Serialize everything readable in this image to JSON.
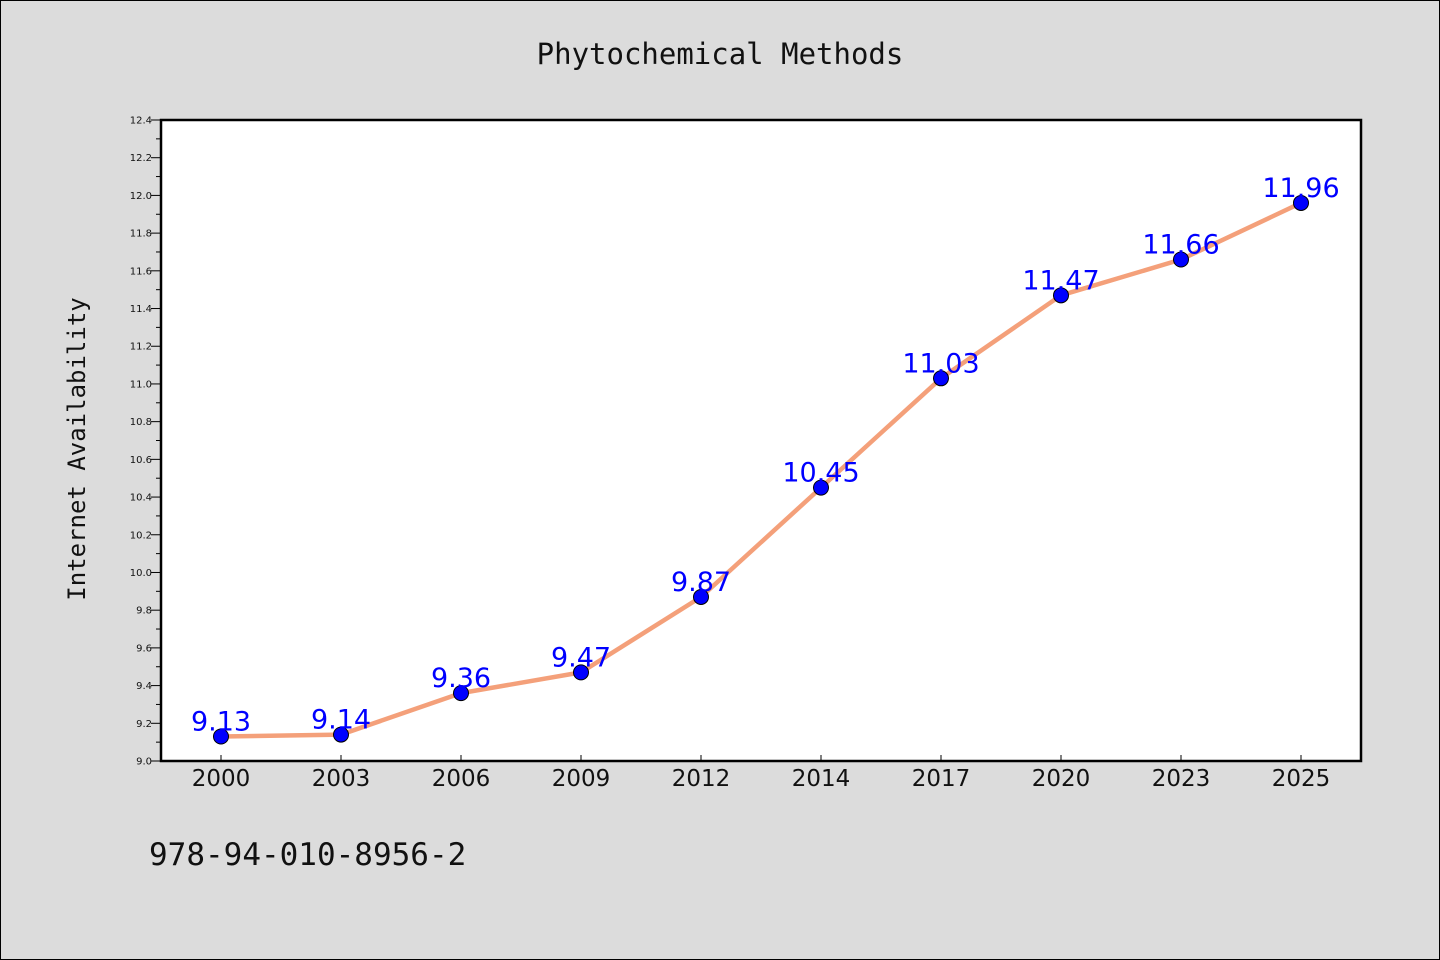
{
  "chart_data": {
    "type": "line",
    "title": "Phytochemical Methods",
    "xlabel": "",
    "ylabel": "Internet Availability",
    "categories": [
      "2000",
      "2003",
      "2006",
      "2009",
      "2012",
      "2014",
      "2017",
      "2020",
      "2023",
      "2025"
    ],
    "series": [
      {
        "values": [
          9.13,
          9.14,
          9.36,
          9.47,
          9.87,
          10.45,
          11.03,
          11.47,
          11.66,
          11.96
        ],
        "labels": [
          "9.13",
          "9.14",
          "9.36",
          "9.47",
          "9.87",
          "10.45",
          "11.03",
          "11.47",
          "11.66",
          "11.96"
        ],
        "line_color": "#f4a07a",
        "marker_color": "#0000ff",
        "label_color": "#0000ff"
      }
    ],
    "ylim": [
      9.0,
      12.4
    ],
    "yticks": [
      "9.0",
      "9.2",
      "9.4",
      "9.6",
      "9.8",
      "10.0",
      "10.2",
      "10.4",
      "10.6",
      "10.8",
      "11.0",
      "11.2",
      "11.4",
      "11.6",
      "11.8",
      "12.0",
      "12.2",
      "12.4"
    ],
    "grid": false,
    "legend": "none",
    "background_color": "#dcdcdc",
    "plot_background_color": "#ffffff"
  },
  "footnote": "978-94-010-8956-2"
}
